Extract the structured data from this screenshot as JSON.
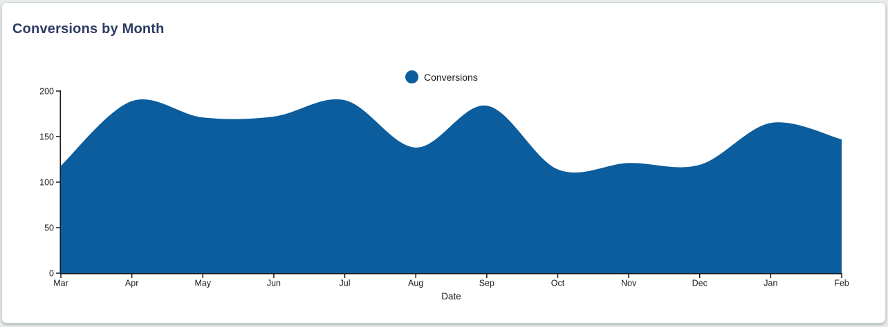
{
  "page": {
    "background_color": "#e9ebea"
  },
  "card": {
    "title": "Conversions by Month",
    "title_color": "#2d3c63",
    "background_color": "#ffffff",
    "border_color": "#ccd7de"
  },
  "chart_data": {
    "type": "area",
    "title": "Conversions by Month",
    "legend_label": "Conversions",
    "legend_position": "top-center",
    "legend_marker": "circle",
    "series_color": "#0b5d9d",
    "axis_color": "#1b1b1b",
    "tick_label_color": "#1b1b1b",
    "xlabel": "Date",
    "ylabel": "",
    "categories": [
      "Mar",
      "Apr",
      "May",
      "Jun",
      "Jul",
      "Aug",
      "Sep",
      "Oct",
      "Nov",
      "Dec",
      "Jan",
      "Feb"
    ],
    "series": [
      {
        "name": "Conversions",
        "values": [
          118,
          189,
          171,
          172,
          190,
          138,
          184,
          114,
          121,
          119,
          165,
          147
        ]
      }
    ],
    "ylim": [
      0,
      200
    ],
    "yticks": [
      0,
      50,
      100,
      150,
      200
    ],
    "grid": false,
    "smoothing": "spline"
  }
}
